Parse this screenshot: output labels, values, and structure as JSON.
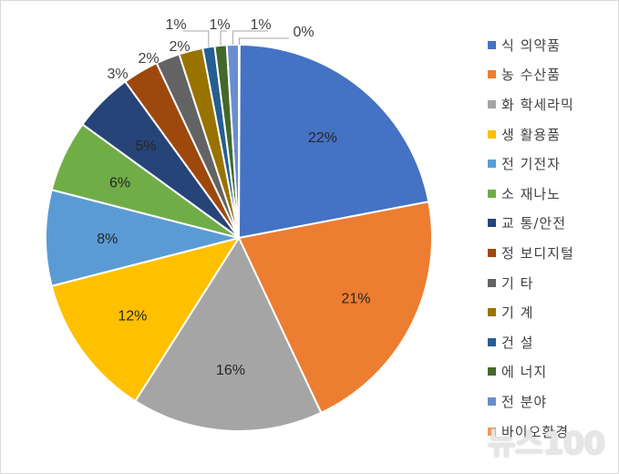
{
  "chart_data": {
    "type": "pie",
    "categories": [
      "식의약품",
      "농수산품",
      "화학세라믹",
      "생활용품",
      "전기전자",
      "소재나노",
      "교통/안전",
      "정보디지털",
      "기타",
      "기계",
      "건설",
      "에너지",
      "전 분야",
      "바이오환경"
    ],
    "values": [
      22,
      21,
      16,
      12,
      8,
      6,
      5,
      3,
      2,
      2,
      1,
      1,
      1,
      0
    ],
    "percent_labels": [
      "22%",
      "21%",
      "16%",
      "12%",
      "8%",
      "6%",
      "5%",
      "3%",
      "2%",
      "2%",
      "1%",
      "1%",
      "1%",
      "0%"
    ],
    "colors": [
      "#4472C4",
      "#ED7D31",
      "#A5A5A5",
      "#FFC000",
      "#5B9BD5",
      "#70AD47",
      "#264478",
      "#9E480E",
      "#636363",
      "#997300",
      "#255E91",
      "#43682B",
      "#698ED0",
      "#F1975A"
    ],
    "legend_position": "right"
  },
  "legend": {
    "items": [
      {
        "label": "식 의약품"
      },
      {
        "label": "농 수산품"
      },
      {
        "label": "화 학세라믹"
      },
      {
        "label": "생 활용품"
      },
      {
        "label": "전 기전자"
      },
      {
        "label": "소 재나노"
      },
      {
        "label": "교 통/안전"
      },
      {
        "label": "정 보디지털"
      },
      {
        "label": "기 타"
      },
      {
        "label": "기 계"
      },
      {
        "label": "건 설"
      },
      {
        "label": "에 너지"
      },
      {
        "label": "전 분야"
      },
      {
        "label": "바이오환경"
      }
    ]
  },
  "watermark": {
    "text": "뉴스100"
  }
}
